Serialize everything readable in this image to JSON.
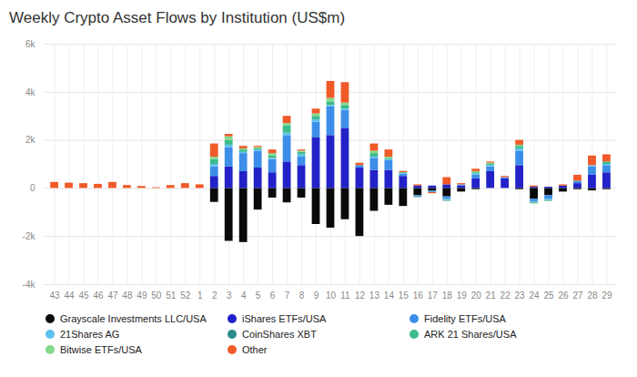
{
  "chart_data": {
    "type": "bar",
    "title": "Weekly Crypto Asset Flows by Institution (US$m)",
    "stacked": true,
    "grid": true,
    "legend": "bottom",
    "categories": [
      "43",
      "44",
      "45",
      "46",
      "47",
      "48",
      "49",
      "50",
      "51",
      "52",
      "1",
      "2",
      "3",
      "4",
      "5",
      "6",
      "7",
      "8",
      "9",
      "10",
      "11",
      "12",
      "13",
      "14",
      "15",
      "16",
      "17",
      "18",
      "19",
      "20",
      "21",
      "22",
      "23",
      "24",
      "25",
      "26",
      "27",
      "28",
      "29"
    ],
    "ylim": [
      -4000,
      6000
    ],
    "yticks": [
      {
        "value": -4000,
        "label": "-4k"
      },
      {
        "value": -2000,
        "label": "-2k"
      },
      0,
      {
        "value": 2000,
        "label": "2k"
      },
      {
        "value": 4000,
        "label": "4k"
      },
      {
        "value": 6000,
        "label": "6k"
      }
    ],
    "series": [
      {
        "name": "Grayscale Investments LLC/USA",
        "color": "#0a0a0a",
        "values": [
          0,
          0,
          0,
          0,
          0,
          0,
          0,
          0,
          0,
          0,
          0,
          -580,
          -2200,
          -2250,
          -900,
          -400,
          -600,
          -400,
          -1500,
          -1650,
          -1300,
          -2000,
          -950,
          -700,
          -750,
          -300,
          -100,
          -350,
          -150,
          -50,
          0,
          0,
          -50,
          -450,
          -300,
          -150,
          -50,
          -100,
          -50
        ]
      },
      {
        "name": "iShares ETFs/USA",
        "color": "#2222c8",
        "values": [
          0,
          0,
          0,
          0,
          0,
          0,
          0,
          0,
          0,
          0,
          0,
          500,
          900,
          700,
          850,
          650,
          1100,
          950,
          2100,
          2200,
          2500,
          850,
          750,
          750,
          500,
          100,
          100,
          150,
          100,
          400,
          700,
          400,
          950,
          50,
          50,
          100,
          200,
          550,
          650
        ]
      },
      {
        "name": "Fidelity ETFs/USA",
        "color": "#3d8ee8",
        "values": [
          0,
          0,
          0,
          0,
          0,
          0,
          0,
          0,
          0,
          0,
          0,
          400,
          800,
          750,
          700,
          550,
          1100,
          350,
          650,
          1200,
          750,
          100,
          500,
          400,
          100,
          -50,
          -50,
          -100,
          50,
          150,
          200,
          50,
          600,
          -100,
          -150,
          0,
          100,
          350,
          300
        ]
      },
      {
        "name": "21Shares AG",
        "color": "#5cc3ee",
        "values": [
          0,
          0,
          0,
          0,
          0,
          0,
          0,
          0,
          0,
          0,
          0,
          100,
          100,
          50,
          50,
          50,
          100,
          100,
          100,
          50,
          50,
          0,
          50,
          50,
          30,
          0,
          0,
          -50,
          0,
          50,
          50,
          0,
          100,
          -30,
          -50,
          0,
          0,
          50,
          50
        ]
      },
      {
        "name": "CoinShares XBT",
        "color": "#2a8c8c",
        "values": [
          0,
          0,
          0,
          0,
          0,
          0,
          0,
          0,
          0,
          0,
          0,
          0,
          0,
          0,
          0,
          0,
          0,
          0,
          0,
          0,
          0,
          0,
          0,
          0,
          0,
          -30,
          -20,
          -30,
          0,
          0,
          0,
          0,
          0,
          -30,
          -20,
          0,
          0,
          0,
          0
        ]
      },
      {
        "name": "ARK 21 Shares/USA",
        "color": "#3dbb8c",
        "values": [
          0,
          0,
          0,
          0,
          0,
          0,
          0,
          0,
          0,
          0,
          0,
          200,
          200,
          100,
          50,
          100,
          300,
          100,
          150,
          150,
          150,
          0,
          150,
          50,
          30,
          0,
          0,
          0,
          0,
          50,
          50,
          0,
          100,
          -30,
          -20,
          0,
          0,
          0,
          100
        ]
      },
      {
        "name": "Bitwise ETFs/USA",
        "color": "#86d98a",
        "values": [
          0,
          0,
          0,
          0,
          0,
          0,
          0,
          0,
          0,
          0,
          0,
          100,
          150,
          50,
          50,
          100,
          100,
          50,
          100,
          150,
          100,
          0,
          100,
          50,
          0,
          0,
          0,
          0,
          0,
          50,
          50,
          0,
          50,
          0,
          0,
          0,
          0,
          0,
          0
        ]
      },
      {
        "name": "Other",
        "color": "#f05a28",
        "values": [
          250,
          220,
          200,
          170,
          250,
          120,
          80,
          30,
          120,
          200,
          150,
          550,
          100,
          100,
          50,
          150,
          300,
          50,
          200,
          700,
          850,
          100,
          300,
          300,
          50,
          50,
          -50,
          300,
          50,
          100,
          50,
          50,
          200,
          50,
          0,
          50,
          250,
          400,
          300
        ]
      }
    ]
  }
}
